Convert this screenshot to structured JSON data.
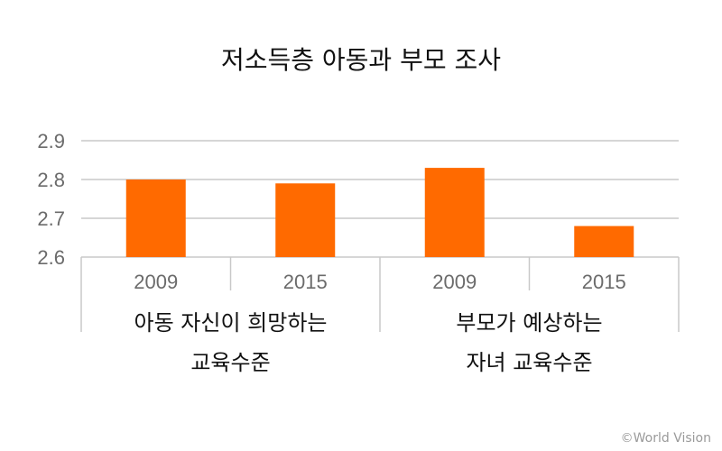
{
  "chart_data": {
    "type": "bar",
    "title": "저소득층 아동과 부모 조사",
    "categories": [
      "2009",
      "2015",
      "2009",
      "2015"
    ],
    "values": [
      2.8,
      2.79,
      2.83,
      2.68
    ],
    "groups": [
      {
        "label_lines": [
          "아동 자신이 희망하는",
          "교육수준"
        ],
        "span": [
          0,
          1
        ]
      },
      {
        "label_lines": [
          "부모가 예상하는",
          "자녀 교육수준"
        ],
        "span": [
          2,
          3
        ]
      }
    ],
    "ylim": [
      2.6,
      2.9
    ],
    "yticks": [
      "2.6",
      "2.7",
      "2.8",
      "2.9"
    ],
    "grid": true,
    "colors": {
      "bar": "#ff6a00",
      "grid": "#c8c8c8",
      "axis_text": "#6b6b6b"
    }
  },
  "credit": "©World Vision"
}
